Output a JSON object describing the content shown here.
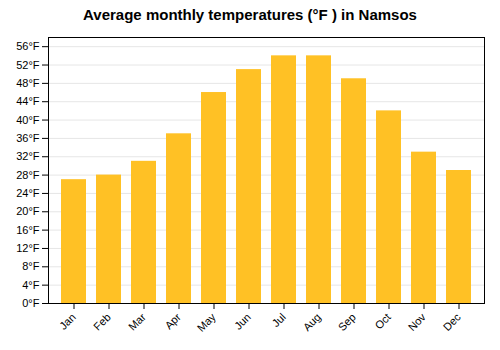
{
  "chart_data": {
    "type": "bar",
    "title": "Average monthly temperatures (°F ) in Namsos",
    "categories": [
      "Jan",
      "Feb",
      "Mar",
      "Apr",
      "May",
      "Jun",
      "Jul",
      "Aug",
      "Sep",
      "Oct",
      "Nov",
      "Dec"
    ],
    "values": [
      27,
      28,
      31,
      37,
      46,
      51,
      54,
      54,
      49,
      42,
      33,
      29
    ],
    "color": "#FFC125",
    "ylim": [
      0,
      58
    ],
    "yticks": [
      {
        "value": 0,
        "label": "0°F"
      },
      {
        "value": 4,
        "label": "4°F"
      },
      {
        "value": 8,
        "label": "8°F"
      },
      {
        "value": 12,
        "label": "12°F"
      },
      {
        "value": 16,
        "label": "16°F"
      },
      {
        "value": 20,
        "label": "20°F"
      },
      {
        "value": 24,
        "label": "24°F"
      },
      {
        "value": 28,
        "label": "28°F"
      },
      {
        "value": 32,
        "label": "32°F"
      },
      {
        "value": 36,
        "label": "36°F"
      },
      {
        "value": 40,
        "label": "40°F"
      },
      {
        "value": 44,
        "label": "44°F"
      },
      {
        "value": 48,
        "label": "48°F"
      },
      {
        "value": 52,
        "label": "52°F"
      },
      {
        "value": 56,
        "label": "56°F"
      }
    ],
    "grid": true
  }
}
